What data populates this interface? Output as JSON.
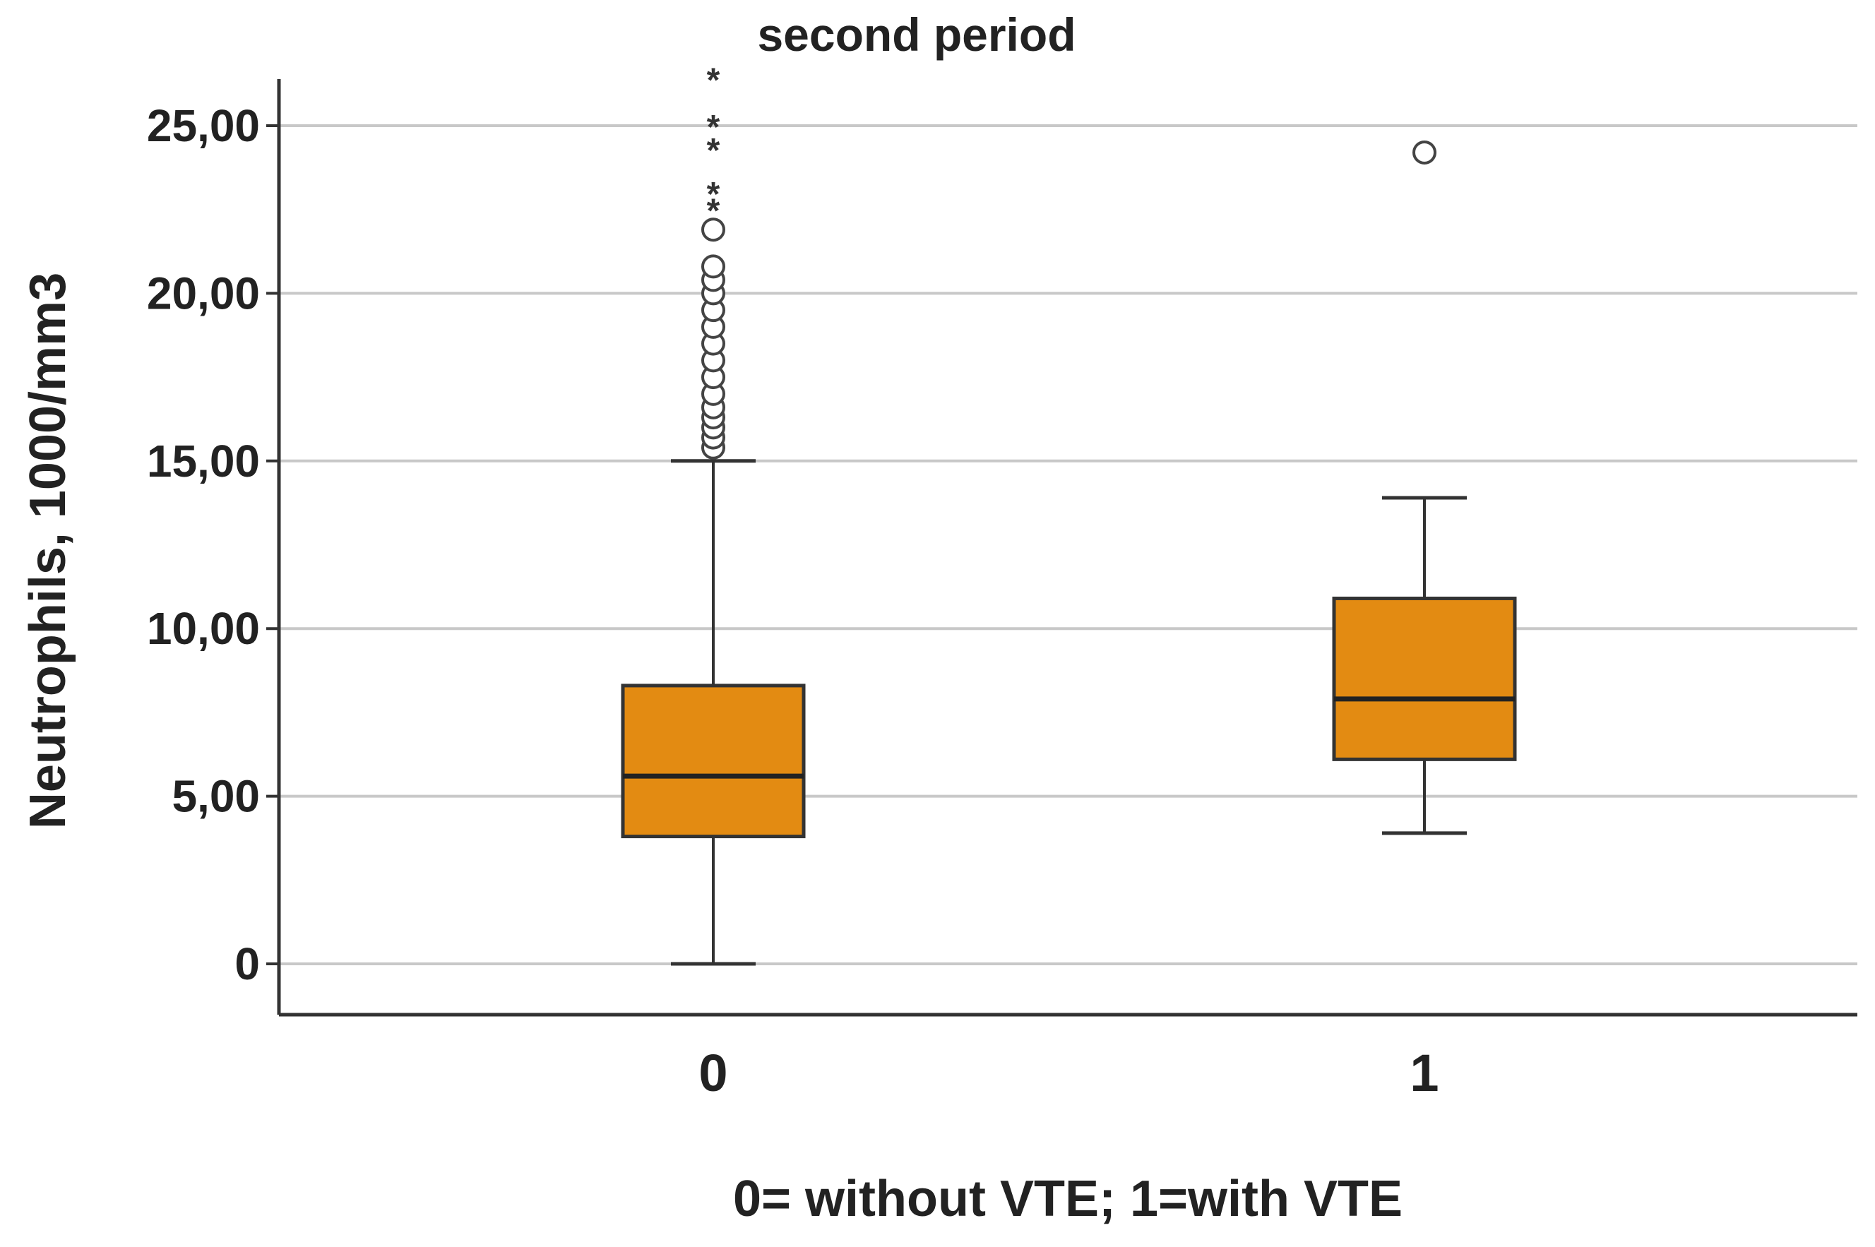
{
  "chart_data": {
    "type": "boxplot",
    "title": "second period",
    "xlabel": "0= without VTE; 1=with VTE",
    "ylabel": "Neutrophils, 1000/mm3",
    "ylim": [
      -1.5,
      26.5
    ],
    "yticks": [
      0,
      5,
      10,
      15,
      20,
      25
    ],
    "ytick_labels": [
      "0",
      "5,00",
      "10,00",
      "15,00",
      "20,00",
      "25,00"
    ],
    "grid": true,
    "box_color": "#E38B12",
    "categories": [
      "0",
      "1"
    ],
    "groups": [
      {
        "category": "0",
        "min": 0,
        "q1": 3.8,
        "median": 5.6,
        "q3": 8.3,
        "max": 15.0,
        "outliers": [
          15.4,
          15.7,
          16.0,
          16.3,
          16.6,
          17.0,
          17.5,
          18.0,
          18.5,
          19.0,
          19.5,
          20.0,
          20.4,
          20.8,
          21.9
        ],
        "extremes": [
          22.5,
          23.0,
          24.3,
          25.0,
          26.4
        ]
      },
      {
        "category": "1",
        "min": 3.9,
        "q1": 6.1,
        "median": 7.9,
        "q3": 10.9,
        "max": 13.9,
        "outliers": [
          24.2
        ],
        "extremes": []
      }
    ]
  }
}
